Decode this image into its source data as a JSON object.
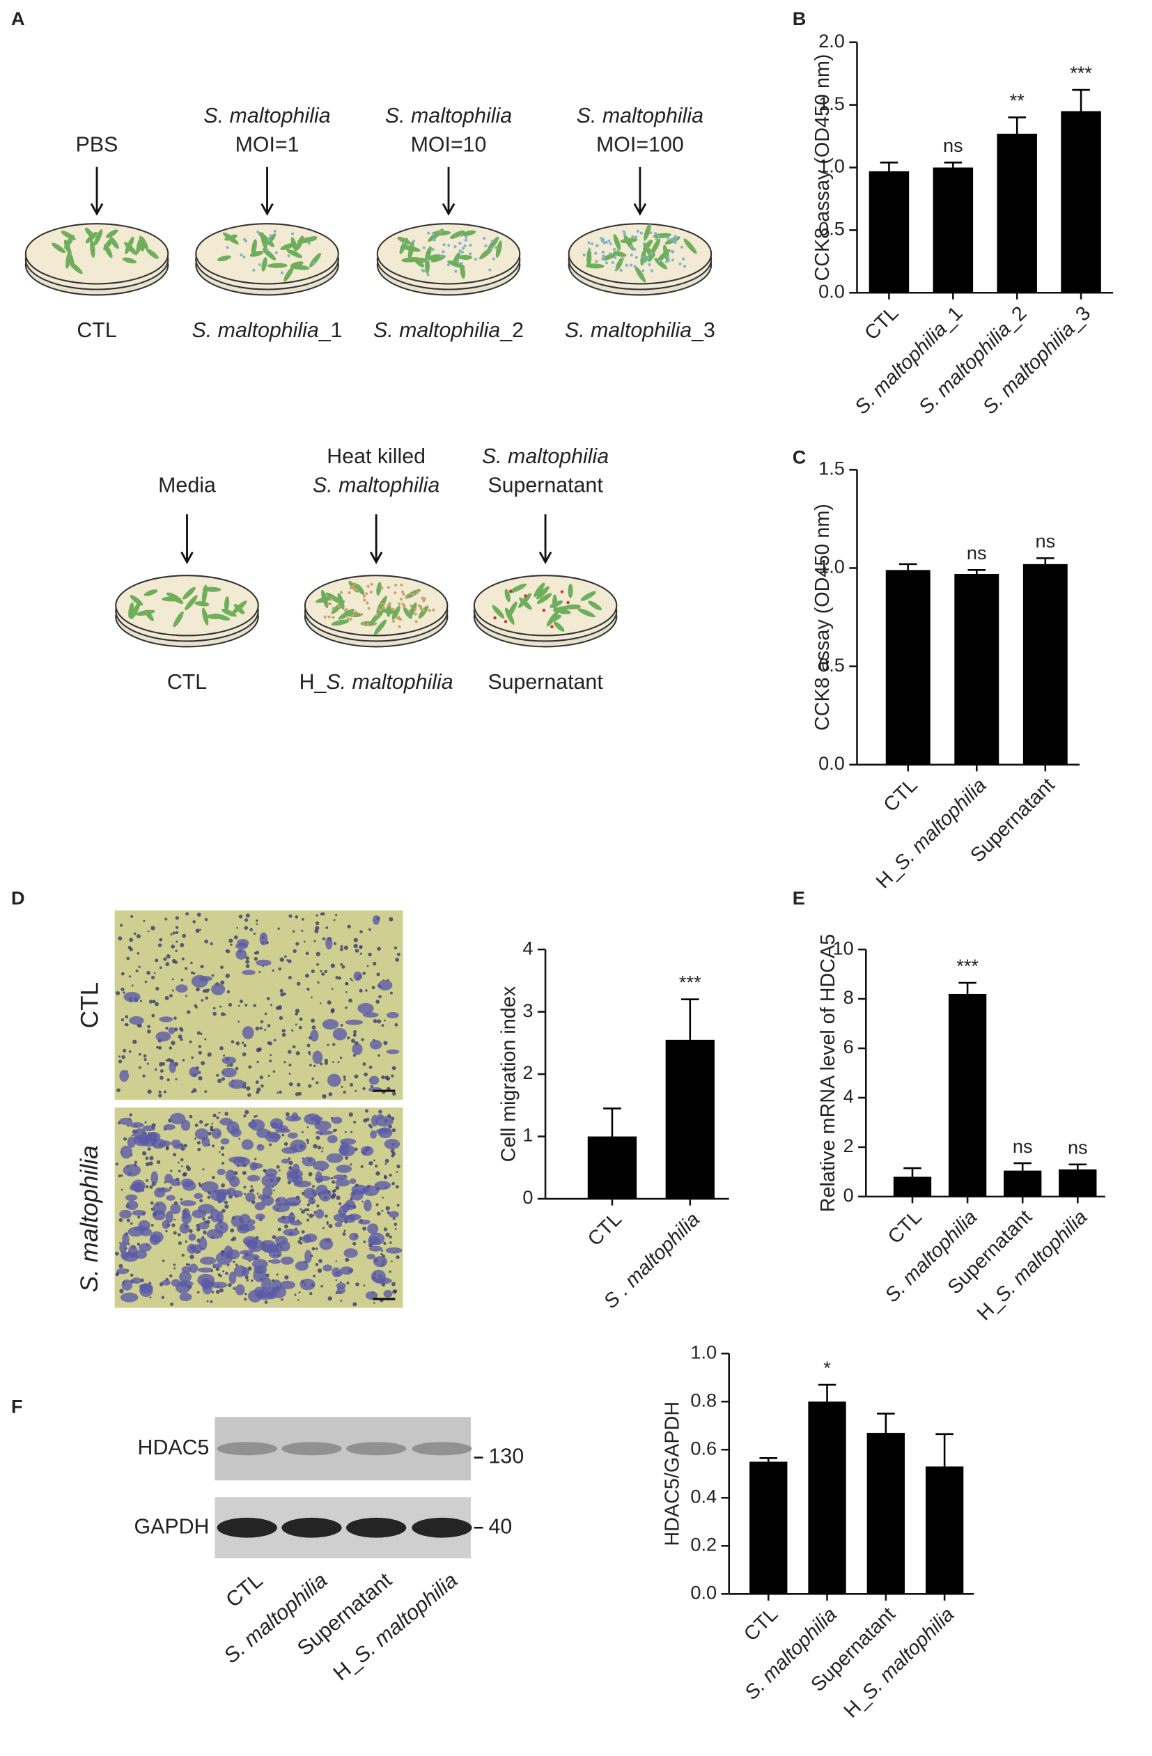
{
  "panel_letters": [
    "A",
    "B",
    "C",
    "D",
    "E",
    "F"
  ],
  "panel_a": {
    "row1": {
      "treatments": [
        [
          "PBS"
        ],
        [
          "S. maltophilia",
          "MOI=1"
        ],
        [
          "S. maltophilia",
          "MOI=10"
        ],
        [
          "S. maltophilia",
          "MOI=100"
        ]
      ],
      "groups": [
        "CTL",
        "S. maltophilia_1",
        "S. maltophilia_2",
        "S. maltophilia_3"
      ]
    },
    "row2": {
      "treatments": [
        [
          "Media"
        ],
        [
          "Heat killed",
          "S. maltophilia"
        ],
        [
          "S. maltophilia",
          "Supernatant"
        ]
      ],
      "groups": [
        "CTL",
        "H_S. maltophilia",
        "Supernatant"
      ]
    }
  },
  "panel_d_images": {
    "labels": [
      "CTL",
      "S. maltophilia"
    ]
  },
  "panel_f_blot": {
    "bands": [
      "HDAC5",
      "GAPDH"
    ],
    "markers": [
      "130",
      "40"
    ],
    "lanes": [
      "CTL",
      "S. maltophilia",
      "Supernatant",
      "H_S. maltophilia"
    ]
  },
  "chart_data": [
    {
      "type": "bar",
      "y_label": "CCK8 assay (OD450 nm)",
      "categories": [
        "CTL",
        "S. maltophilia_1",
        "S. maltophilia_2",
        "S. maltophilia_3"
      ],
      "values": [
        0.97,
        1.0,
        1.27,
        1.45
      ],
      "errors": [
        0.07,
        0.04,
        0.13,
        0.17
      ],
      "significance": [
        null,
        "ns",
        "**",
        "***"
      ],
      "color": "#000000",
      "ylim": [
        0,
        2
      ],
      "yticks": [
        {
          "value": 0,
          "label": "0.0"
        },
        {
          "value": 0.5,
          "label": "0.5"
        },
        {
          "value": 1,
          "label": "1.0"
        },
        {
          "value": 1.5,
          "label": "1.5"
        },
        {
          "value": 2,
          "label": "2.0"
        }
      ]
    },
    {
      "type": "bar",
      "y_label": "CCK8 assay (OD450 nm)",
      "categories": [
        "CTL",
        "H_S. maltophilia",
        "Supernatant"
      ],
      "values": [
        0.99,
        0.97,
        1.02
      ],
      "errors": [
        0.03,
        0.02,
        0.03
      ],
      "significance": [
        null,
        "ns",
        "ns"
      ],
      "color": "#000000",
      "ylim": [
        0,
        1.5
      ],
      "yticks": [
        {
          "value": 0,
          "label": "0.0"
        },
        {
          "value": 0.5,
          "label": "0.5"
        },
        {
          "value": 1,
          "label": "1.0"
        },
        {
          "value": 1.5,
          "label": "1.5"
        }
      ]
    },
    {
      "type": "bar",
      "y_label": "Cell migration index",
      "categories": [
        "CTL",
        "S . maltophilia"
      ],
      "values": [
        1.0,
        2.55
      ],
      "errors": [
        0.45,
        0.65
      ],
      "significance": [
        null,
        "***"
      ],
      "color": "#000000",
      "ylim": [
        0,
        4
      ],
      "yticks": [
        0,
        1,
        2,
        3,
        4
      ]
    },
    {
      "type": "bar",
      "y_label": "Relative mRNA level of HDCA5",
      "categories": [
        "CTL",
        "S. maltophilia",
        "Supernatant",
        "H_S. maltophilia"
      ],
      "values": [
        0.8,
        8.2,
        1.05,
        1.1
      ],
      "errors": [
        0.35,
        0.45,
        0.3,
        0.2
      ],
      "significance": [
        null,
        "***",
        "ns",
        "ns"
      ],
      "color": "#000000",
      "ylim": [
        0,
        10
      ],
      "yticks": [
        0,
        2,
        4,
        6,
        8,
        10
      ]
    },
    {
      "type": "bar",
      "y_label": "HDAC5/GAPDH",
      "categories": [
        "CTL",
        "S. maltophilia",
        "Supernatant",
        "H_S. maltophilia"
      ],
      "values": [
        0.55,
        0.8,
        0.67,
        0.53
      ],
      "errors": [
        0.015,
        0.07,
        0.08,
        0.135
      ],
      "significance": [
        null,
        "*",
        null,
        null
      ],
      "color": "#000000",
      "ylim": [
        0,
        1
      ],
      "yticks": [
        {
          "value": 0,
          "label": "0.0"
        },
        {
          "value": 0.2,
          "label": "0.2"
        },
        {
          "value": 0.4,
          "label": "0.4"
        },
        {
          "value": 0.6,
          "label": "0.6"
        },
        {
          "value": 0.8,
          "label": "0.8"
        },
        {
          "value": 1,
          "label": "1.0"
        }
      ]
    }
  ]
}
